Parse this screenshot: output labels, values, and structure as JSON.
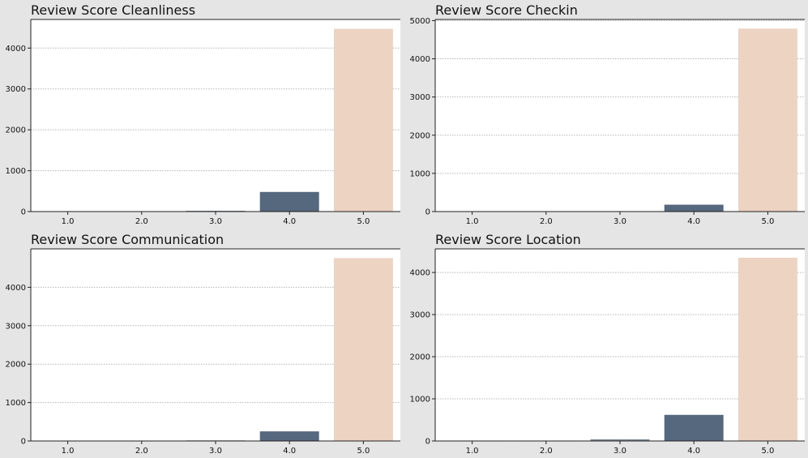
{
  "chart_data": [
    {
      "type": "bar",
      "title": "Review Score Cleanliness",
      "categories": [
        "1.0",
        "2.0",
        "3.0",
        "4.0",
        "5.0"
      ],
      "values": [
        5,
        5,
        20,
        480,
        4470
      ],
      "colors": [
        "#dd8452",
        "#c9a89a",
        "#7f8a99",
        "#56687d",
        "#ecd3c2"
      ],
      "yticks": [
        0,
        1000,
        2000,
        3000,
        4000
      ],
      "ylim": [
        0,
        4700
      ],
      "grid": true
    },
    {
      "type": "bar",
      "title": "Review Score Checkin",
      "categories": [
        "1.0",
        "2.0",
        "3.0",
        "4.0",
        "5.0"
      ],
      "values": [
        2,
        2,
        10,
        180,
        4790
      ],
      "colors": [
        "#dd8452",
        "#c9a89a",
        "#7f8a99",
        "#56687d",
        "#ecd3c2"
      ],
      "yticks": [
        0,
        1000,
        2000,
        3000,
        4000,
        5000
      ],
      "ylim": [
        0,
        5030
      ],
      "grid": true
    },
    {
      "type": "bar",
      "title": "Review Score Communication",
      "categories": [
        "1.0",
        "2.0",
        "3.0",
        "4.0",
        "5.0"
      ],
      "values": [
        10,
        4,
        15,
        250,
        4760
      ],
      "colors": [
        "#dd8452",
        "#c9a89a",
        "#7f8a99",
        "#56687d",
        "#ecd3c2"
      ],
      "yticks": [
        0,
        1000,
        2000,
        3000,
        4000
      ],
      "ylim": [
        0,
        5000
      ],
      "grid": true
    },
    {
      "type": "bar",
      "title": "Review Score Location",
      "categories": [
        "1.0",
        "2.0",
        "3.0",
        "4.0",
        "5.0"
      ],
      "values": [
        10,
        10,
        40,
        620,
        4350
      ],
      "colors": [
        "#dd8452",
        "#c9a89a",
        "#7f8a99",
        "#56687d",
        "#ecd3c2"
      ],
      "yticks": [
        0,
        1000,
        2000,
        3000,
        4000
      ],
      "ylim": [
        0,
        4560
      ],
      "grid": true
    }
  ]
}
